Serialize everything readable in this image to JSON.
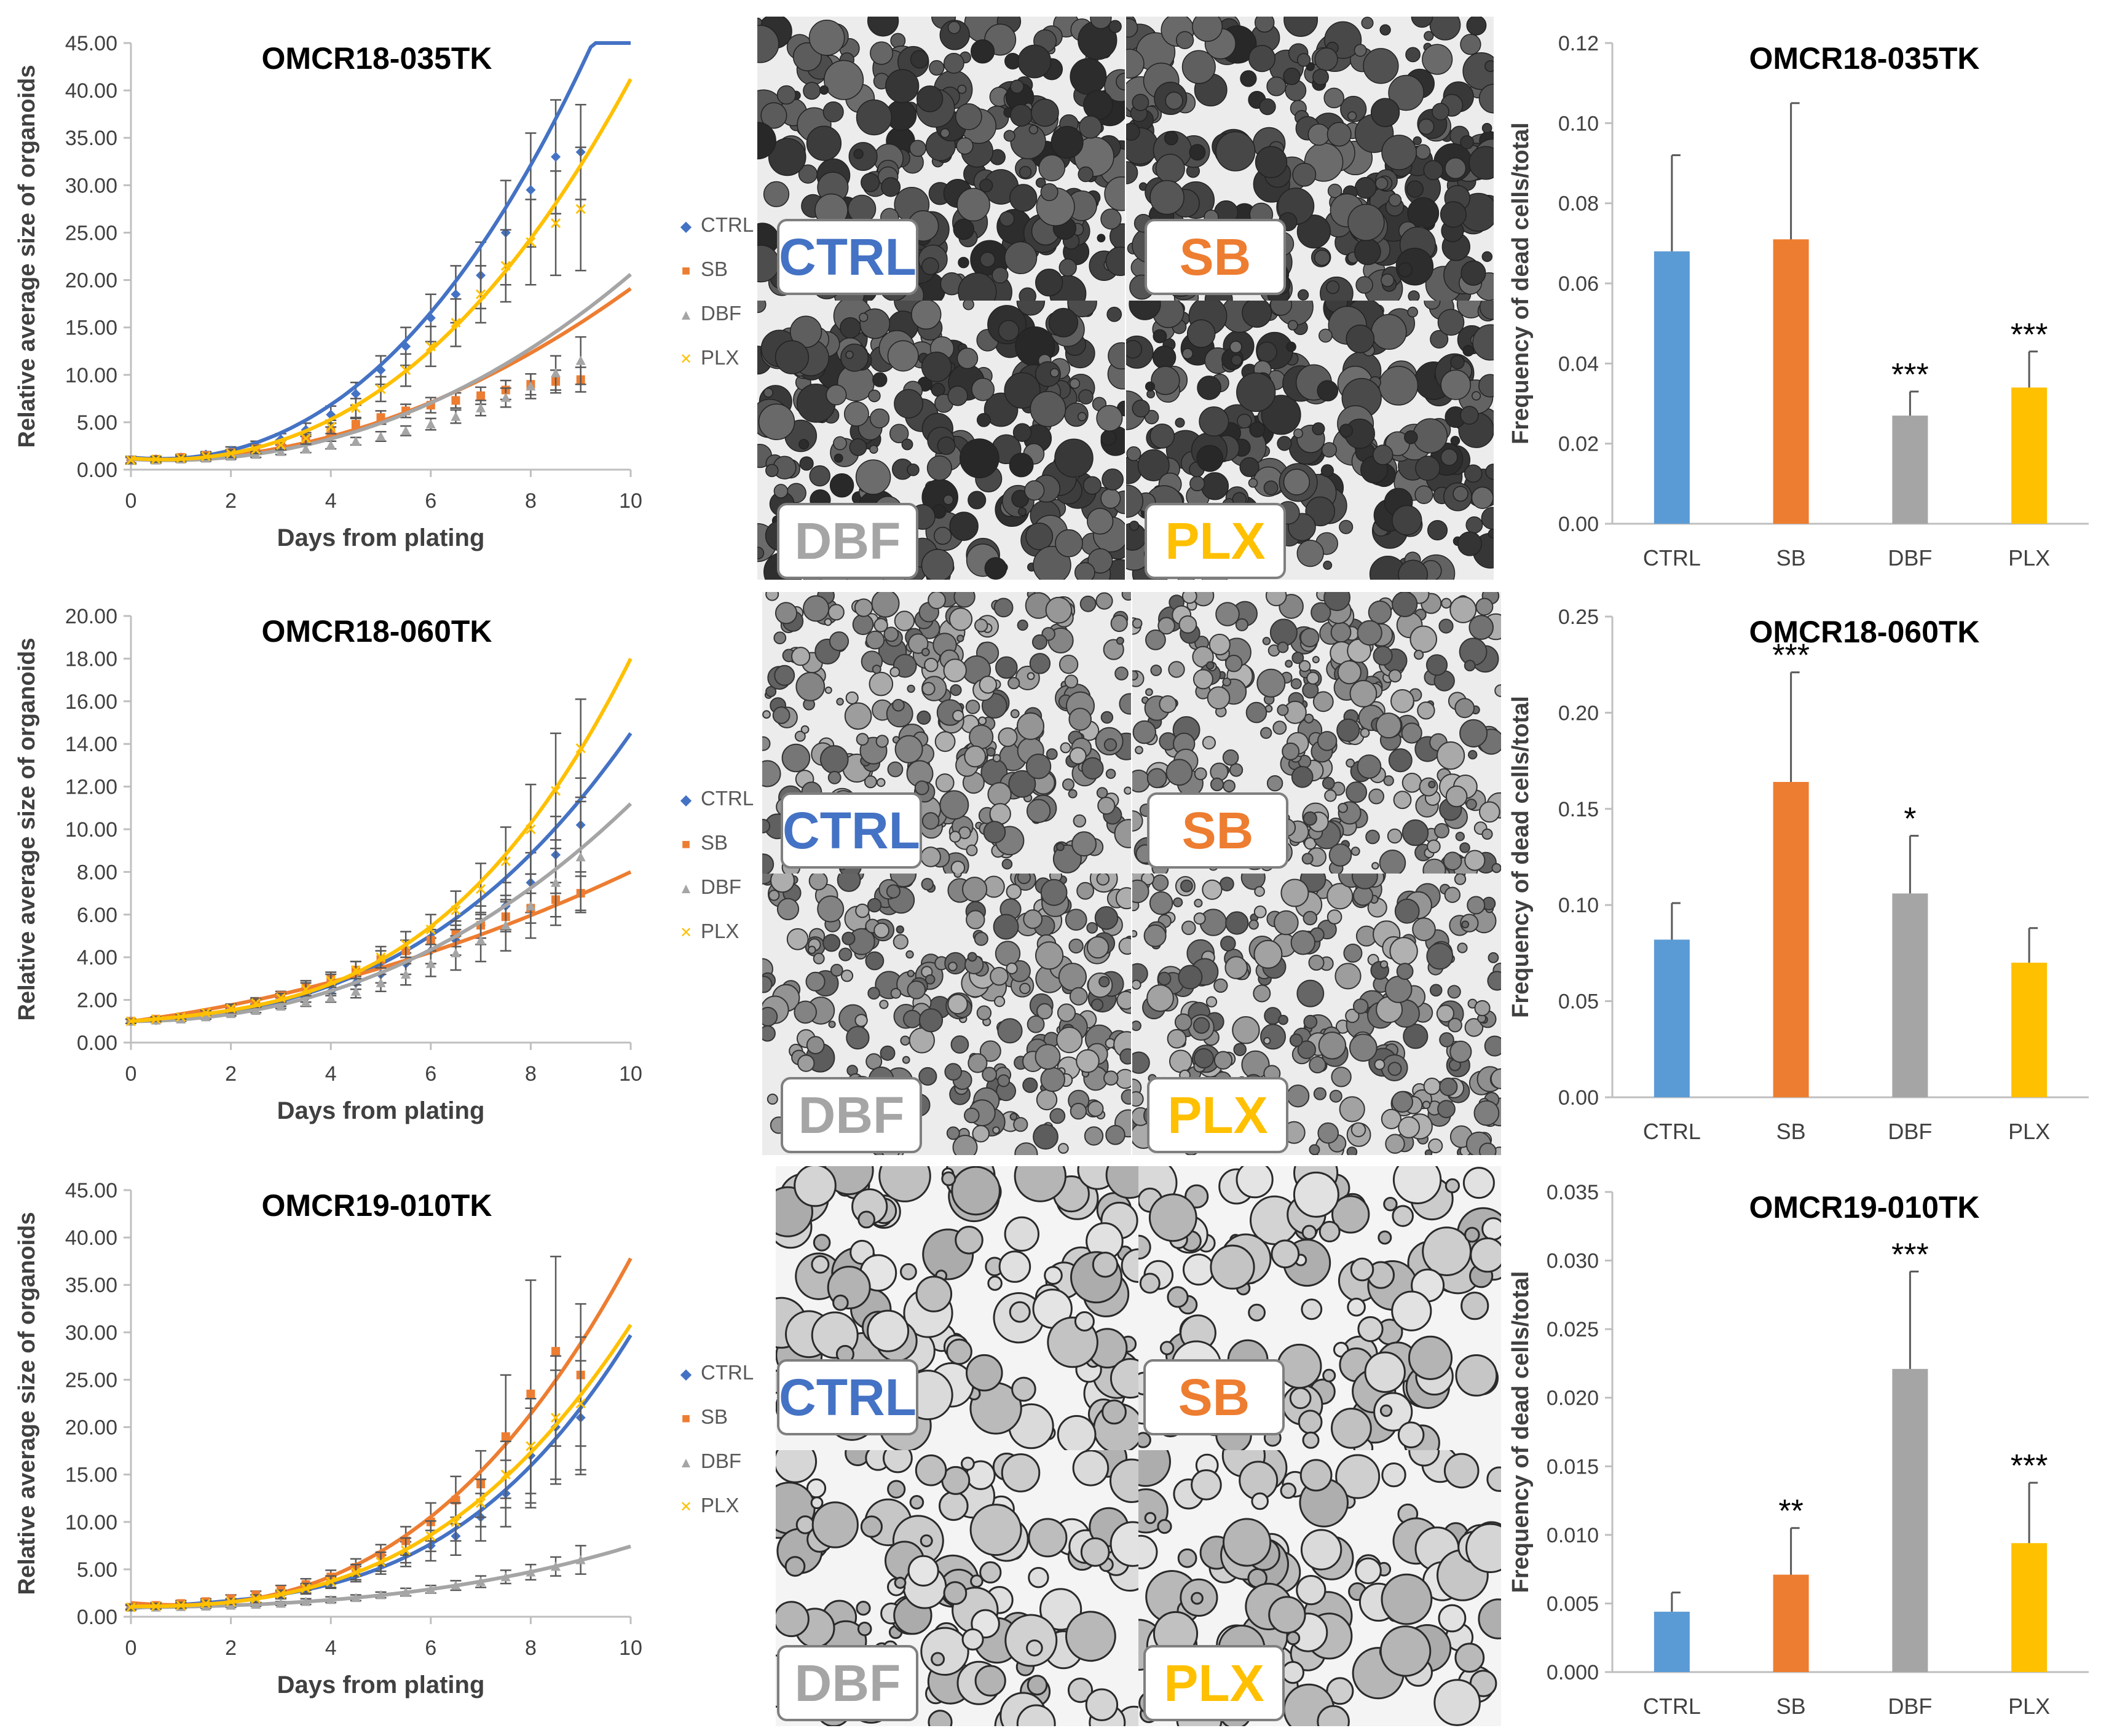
{
  "colors": {
    "CTRL": "#4472c4",
    "SB": "#ed7d31",
    "DBF": "#a5a5a5",
    "PLX": "#ffc000",
    "bar_CTRL": "#5b9bd5",
    "bar_SB": "#ed7d31",
    "bar_DBF": "#a5a5a5",
    "bar_PLX": "#ffc000"
  },
  "legend": {
    "items": [
      "CTRL",
      "SB",
      "DBF",
      "PLX"
    ],
    "markers": [
      "◆",
      "■",
      "▲",
      "✕"
    ]
  },
  "image_labels": [
    "CTRL",
    "SB",
    "DBF",
    "PLX"
  ],
  "chart_data": [
    {
      "type": "line",
      "title": "OMCR18-035TK",
      "xlabel": "Days from plating",
      "ylabel": "Relative average size of organoids",
      "xlim": [
        0,
        10
      ],
      "ylim": [
        0,
        45
      ],
      "xticks": [
        "0",
        "2",
        "4",
        "6",
        "8",
        "10"
      ],
      "yticks": [
        "0.00",
        "5.00",
        "10.00",
        "15.00",
        "20.00",
        "25.00",
        "30.00",
        "35.00",
        "40.00",
        "45.00"
      ],
      "x": [
        0,
        0.5,
        1,
        1.5,
        2,
        2.5,
        3,
        3.5,
        4,
        4.5,
        5,
        5.5,
        6,
        6.5,
        7,
        7.5,
        8,
        8.5,
        9
      ],
      "series": [
        {
          "name": "CTRL",
          "values": [
            1,
            1.1,
            1.3,
            1.6,
            2,
            2.5,
            3.2,
            4.2,
            5.8,
            8,
            10.5,
            13,
            16,
            18.5,
            20.5,
            25,
            29.5,
            33,
            33.5
          ],
          "err": [
            0.4,
            0.3,
            0.3,
            0.3,
            0.4,
            0.5,
            0.6,
            0.7,
            0.9,
            1.2,
            1.5,
            2,
            2.5,
            3,
            3.5,
            5.5,
            6,
            6,
            5
          ],
          "fit": [
            1.3,
            -0.5,
            0.4,
            0.018
          ]
        },
        {
          "name": "SB",
          "values": [
            1,
            1.1,
            1.3,
            1.5,
            1.8,
            2.2,
            2.7,
            3.2,
            4,
            4.8,
            5.5,
            6.2,
            6.8,
            7.3,
            7.8,
            8.4,
            9,
            9.3,
            9.5
          ],
          "err": [
            0.3,
            0.3,
            0.3,
            0.3,
            0.3,
            0.4,
            0.4,
            0.5,
            0.5,
            0.6,
            0.7,
            0.7,
            0.8,
            0.8,
            0.9,
            1,
            1.1,
            1.2,
            1.3
          ],
          "fit": [
            1.1,
            -0.2,
            0.2,
            0
          ]
        },
        {
          "name": "DBF",
          "values": [
            1,
            1,
            1.1,
            1.2,
            1.4,
            1.6,
            1.9,
            2.2,
            2.6,
            3,
            3.5,
            4.1,
            4.8,
            5.6,
            6.5,
            7.6,
            8.8,
            10.2,
            11.5
          ],
          "err": [
            0.3,
            0.3,
            0.3,
            0.3,
            0.3,
            0.3,
            0.3,
            0.4,
            0.4,
            0.4,
            0.5,
            0.5,
            0.6,
            0.7,
            0.8,
            1,
            1.3,
            1.8,
            2.5
          ],
          "fit": [
            1.1,
            -0.3,
            0.2,
            0.0025
          ]
        },
        {
          "name": "PLX",
          "values": [
            1,
            1.1,
            1.2,
            1.4,
            1.7,
            2.1,
            2.6,
            3.3,
            4.5,
            6.5,
            8.5,
            10.5,
            13,
            15.5,
            18.5,
            21.5,
            24,
            26,
            27.5
          ],
          "err": [
            0.3,
            0.3,
            0.3,
            0.3,
            0.4,
            0.4,
            0.5,
            0.6,
            0.7,
            1,
            1.3,
            1.7,
            2.1,
            2.5,
            3,
            3.8,
            4.5,
            5.5,
            6.5
          ],
          "fit": [
            1.2,
            -0.4,
            0.3,
            0.014
          ]
        }
      ]
    },
    {
      "type": "line",
      "title": "OMCR18-060TK",
      "xlabel": "Days from plating",
      "ylabel": "Relative average size of organoids",
      "xlim": [
        0,
        10
      ],
      "ylim": [
        0,
        20
      ],
      "xticks": [
        "0",
        "2",
        "4",
        "6",
        "8",
        "10"
      ],
      "yticks": [
        "0.00",
        "2.00",
        "4.00",
        "6.00",
        "8.00",
        "10.00",
        "12.00",
        "14.00",
        "16.00",
        "18.00",
        "20.00"
      ],
      "x": [
        0,
        0.5,
        1,
        1.5,
        2,
        2.5,
        3,
        3.5,
        4,
        4.5,
        5,
        5.5,
        6,
        6.5,
        7,
        7.5,
        8,
        8.5,
        9
      ],
      "series": [
        {
          "name": "CTRL",
          "values": [
            1,
            1.05,
            1.15,
            1.3,
            1.5,
            1.7,
            1.9,
            2.1,
            2.4,
            2.8,
            3.2,
            3.7,
            4.3,
            4.8,
            5.5,
            6.4,
            7.5,
            8.8,
            10.2
          ],
          "err": [
            0.1,
            0.1,
            0.1,
            0.1,
            0.1,
            0.1,
            0.2,
            0.2,
            0.2,
            0.3,
            0.4,
            0.5,
            0.6,
            0.7,
            0.9,
            1.1,
            1.4,
            1.8,
            2.2
          ],
          "fit": [
            1.0,
            0.1,
            0.05,
            0.0075
          ]
        },
        {
          "name": "SB",
          "values": [
            1,
            1.1,
            1.2,
            1.4,
            1.6,
            1.9,
            2.2,
            2.6,
            3,
            3.4,
            3.9,
            4.3,
            4.8,
            5.1,
            5.5,
            5.9,
            6.3,
            6.7,
            7
          ],
          "err": [
            0.1,
            0.1,
            0.1,
            0.1,
            0.2,
            0.2,
            0.2,
            0.3,
            0.3,
            0.4,
            0.4,
            0.5,
            0.5,
            0.6,
            0.6,
            0.7,
            0.7,
            0.8,
            0.8
          ],
          "fit": [
            1.0,
            0.3,
            0.04,
            0
          ]
        },
        {
          "name": "DBF",
          "values": [
            1,
            1.05,
            1.1,
            1.2,
            1.35,
            1.5,
            1.7,
            1.9,
            2.1,
            2.4,
            2.8,
            3.2,
            3.7,
            4.2,
            4.8,
            5.5,
            6.4,
            7.5,
            8.7
          ],
          "err": [
            0.1,
            0.1,
            0.1,
            0.1,
            0.1,
            0.1,
            0.1,
            0.2,
            0.2,
            0.3,
            0.4,
            0.5,
            0.6,
            0.8,
            1,
            1.2,
            1.5,
            2,
            2.6
          ],
          "fit": [
            1.0,
            0,
            0.08,
            0.0022
          ]
        },
        {
          "name": "PLX",
          "values": [
            1,
            1.1,
            1.2,
            1.4,
            1.6,
            1.85,
            2.1,
            2.5,
            2.9,
            3.4,
            4,
            4.6,
            5.3,
            6.2,
            7.2,
            8.5,
            10,
            11.8,
            13.8
          ],
          "err": [
            0.1,
            0.1,
            0.1,
            0.1,
            0.2,
            0.2,
            0.2,
            0.3,
            0.3,
            0.4,
            0.5,
            0.6,
            0.7,
            0.9,
            1.2,
            1.6,
            2.1,
            2.7,
            2.3
          ],
          "fit": [
            1.0,
            0.2,
            0,
            0.015
          ]
        }
      ]
    },
    {
      "type": "line",
      "title": "OMCR19-010TK",
      "xlabel": "Days from plating",
      "ylabel": "Relative average size of organoids",
      "xlim": [
        0,
        10
      ],
      "ylim": [
        0,
        45
      ],
      "xticks": [
        "0",
        "2",
        "4",
        "6",
        "8",
        "10"
      ],
      "yticks": [
        "0.00",
        "5.00",
        "10.00",
        "15.00",
        "20.00",
        "25.00",
        "30.00",
        "35.00",
        "40.00",
        "45.00"
      ],
      "x": [
        0,
        0.5,
        1,
        1.5,
        2,
        2.5,
        3,
        3.5,
        4,
        4.5,
        5,
        5.5,
        6,
        6.5,
        7,
        7.5,
        8,
        8.5,
        9
      ],
      "series": [
        {
          "name": "CTRL",
          "values": [
            1,
            1.1,
            1.2,
            1.4,
            1.6,
            1.9,
            2.3,
            2.9,
            3.6,
            4.5,
            5.5,
            6.6,
            7.5,
            8.5,
            10.5,
            13,
            17,
            20,
            21
          ],
          "err": [
            0.3,
            0.3,
            0.3,
            0.3,
            0.3,
            0.4,
            0.4,
            0.5,
            0.6,
            0.8,
            1,
            1.3,
            1.6,
            2,
            2.5,
            3.5,
            5,
            6,
            6
          ]
        },
        {
          "name": "SB",
          "values": [
            1,
            1.2,
            1.4,
            1.6,
            1.9,
            2.3,
            2.8,
            3.4,
            4.2,
            5.2,
            6.5,
            8,
            10,
            12.3,
            14,
            19,
            23.5,
            28,
            25.5
          ],
          "err": [
            0.3,
            0.3,
            0.3,
            0.3,
            0.4,
            0.4,
            0.5,
            0.6,
            0.7,
            0.9,
            1.1,
            1.5,
            2,
            2.5,
            3.5,
            6.5,
            12,
            10,
            7.5
          ]
        },
        {
          "name": "DBF",
          "values": [
            1,
            1,
            1.05,
            1.1,
            1.2,
            1.3,
            1.4,
            1.6,
            1.8,
            2,
            2.3,
            2.6,
            2.9,
            3.3,
            3.7,
            4.2,
            4.7,
            5.3,
            6
          ],
          "err": [
            0.2,
            0.2,
            0.2,
            0.2,
            0.2,
            0.2,
            0.2,
            0.3,
            0.3,
            0.3,
            0.3,
            0.4,
            0.4,
            0.5,
            0.6,
            0.7,
            0.8,
            1,
            1.5
          ]
        },
        {
          "name": "PLX",
          "values": [
            1,
            1.1,
            1.2,
            1.4,
            1.6,
            1.9,
            2.4,
            3,
            3.7,
            4.7,
            5.8,
            7,
            8.5,
            10,
            12,
            15,
            18,
            21,
            22.5
          ],
          "err": [
            0.3,
            0.3,
            0.3,
            0.3,
            0.3,
            0.4,
            0.4,
            0.5,
            0.6,
            0.8,
            1,
            1.3,
            1.6,
            2,
            2.5,
            3.5,
            5,
            6.5,
            7
          ]
        }
      ]
    },
    {
      "type": "bar",
      "title": "OMCR18-035TK",
      "ylabel": "Frequency of dead cells/total",
      "categories": [
        "CTRL",
        "SB",
        "DBF",
        "PLX"
      ],
      "values": [
        0.068,
        0.071,
        0.027,
        0.034
      ],
      "err": [
        0.024,
        0.034,
        0.006,
        0.009
      ],
      "significance": [
        "",
        "",
        "***",
        "***"
      ],
      "ylim": [
        0,
        0.12
      ],
      "yticks": [
        "0.00",
        "0.02",
        "0.04",
        "0.06",
        "0.08",
        "0.10",
        "0.12"
      ]
    },
    {
      "type": "bar",
      "title": "OMCR18-060TK",
      "ylabel": "Frequency of dead cells/total",
      "categories": [
        "CTRL",
        "SB",
        "DBF",
        "PLX"
      ],
      "values": [
        0.082,
        0.164,
        0.106,
        0.07
      ],
      "err": [
        0.019,
        0.057,
        0.03,
        0.018
      ],
      "significance": [
        "",
        "***",
        "*",
        ""
      ],
      "ylim": [
        0,
        0.25
      ],
      "yticks": [
        "0.00",
        "0.05",
        "0.10",
        "0.15",
        "0.20",
        "0.25"
      ]
    },
    {
      "type": "bar",
      "title": "OMCR19-010TK",
      "ylabel": "Frequency of dead cells/total",
      "categories": [
        "CTRL",
        "SB",
        "DBF",
        "PLX"
      ],
      "values": [
        0.0044,
        0.0071,
        0.0221,
        0.0094
      ],
      "err": [
        0.0014,
        0.0034,
        0.0071,
        0.0044
      ],
      "significance": [
        "",
        "**",
        "***",
        "***"
      ],
      "ylim": [
        0,
        0.035
      ],
      "yticks": [
        "0.000",
        "0.005",
        "0.010",
        "0.015",
        "0.020",
        "0.025",
        "0.030",
        "0.035"
      ]
    }
  ]
}
